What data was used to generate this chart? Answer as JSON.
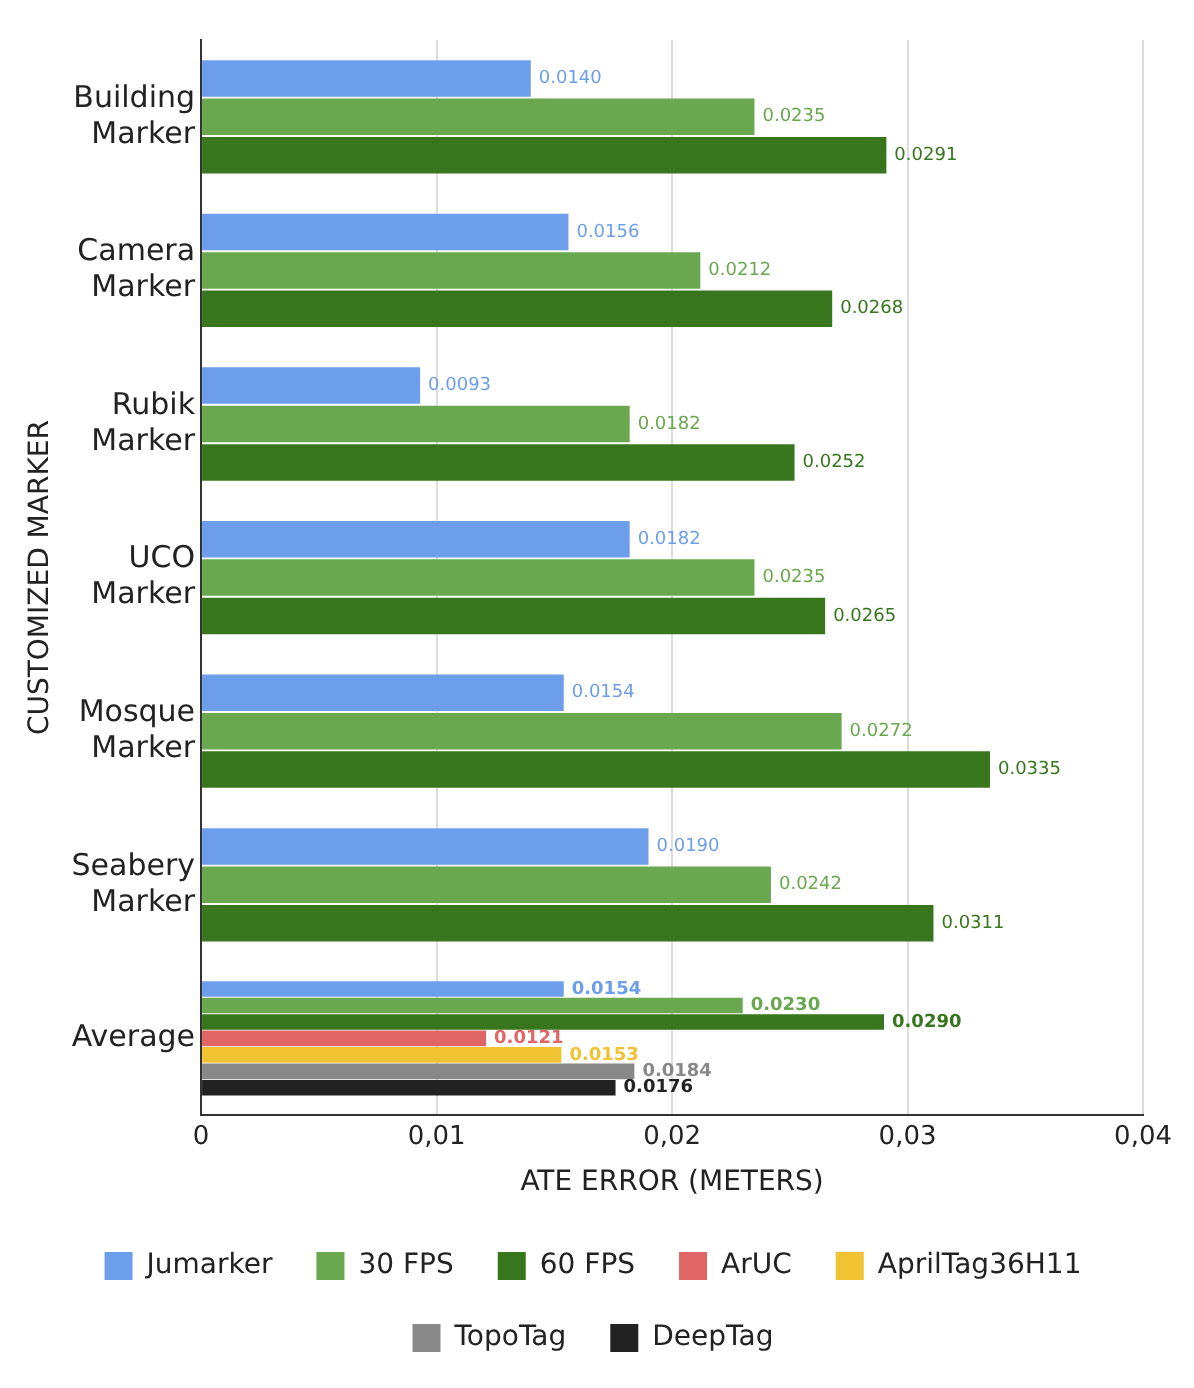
{
  "chart_data": {
    "type": "bar",
    "orientation": "horizontal",
    "xlabel": "ATE ERROR (METERS)",
    "ylabel": "CUSTOMIZED MARKER",
    "categories": [
      "Building Marker",
      "Camera Marker",
      "Rubik Marker",
      "UCO Marker",
      "Mosque Marker",
      "Seabery Marker",
      "Average"
    ],
    "series": [
      {
        "name": "Jumarker",
        "color": "#6d9eeb",
        "values": [
          0.014,
          0.0156,
          0.0093,
          0.0182,
          0.0154,
          0.019,
          0.0154
        ],
        "value_labels": [
          "0.0140",
          "0.0156",
          "0.0093",
          "0.0182",
          "0.0154",
          "0.0190",
          "0.0154"
        ]
      },
      {
        "name": "30 FPS",
        "color": "#6aa84f",
        "values": [
          0.0235,
          0.0212,
          0.0182,
          0.0235,
          0.0272,
          0.0242,
          0.023
        ],
        "value_labels": [
          "0.0235",
          "0.0212",
          "0.0182",
          "0.0235",
          "0.0272",
          "0.0242",
          "0.0230"
        ]
      },
      {
        "name": "60 FPS",
        "color": "#38761d",
        "values": [
          0.0291,
          0.0268,
          0.0252,
          0.0265,
          0.0335,
          0.0311,
          0.029
        ],
        "value_labels": [
          "0.0291",
          "0.0268",
          "0.0252",
          "0.0265",
          "0.0335",
          "0.0311",
          "0.0290"
        ]
      },
      {
        "name": "ArUC",
        "color": "#e06666",
        "values": [
          null,
          null,
          null,
          null,
          null,
          null,
          0.0121
        ],
        "value_labels": [
          null,
          null,
          null,
          null,
          null,
          null,
          "0.0121"
        ]
      },
      {
        "name": "AprilTag36H11",
        "color": "#f1c232",
        "values": [
          null,
          null,
          null,
          null,
          null,
          null,
          0.0153
        ],
        "value_labels": [
          null,
          null,
          null,
          null,
          null,
          null,
          "0.0153"
        ]
      },
      {
        "name": "TopoTag",
        "color": "#888888",
        "values": [
          null,
          null,
          null,
          null,
          null,
          null,
          0.0184
        ],
        "value_labels": [
          null,
          null,
          null,
          null,
          null,
          null,
          "0.0184"
        ]
      },
      {
        "name": "DeepTag",
        "color": "#222222",
        "values": [
          null,
          null,
          null,
          null,
          null,
          null,
          0.0176
        ],
        "value_labels": [
          null,
          null,
          null,
          null,
          null,
          null,
          "0.0176"
        ]
      }
    ],
    "xlim": [
      0,
      0.04
    ],
    "xticks": [
      {
        "value": 0,
        "label": "0"
      },
      {
        "value": 0.01,
        "label": "0,01"
      },
      {
        "value": 0.02,
        "label": "0,02"
      },
      {
        "value": 0.03,
        "label": "0,03"
      },
      {
        "value": 0.04,
        "label": "0,04"
      }
    ],
    "grid": "x",
    "legend": "bottom"
  }
}
